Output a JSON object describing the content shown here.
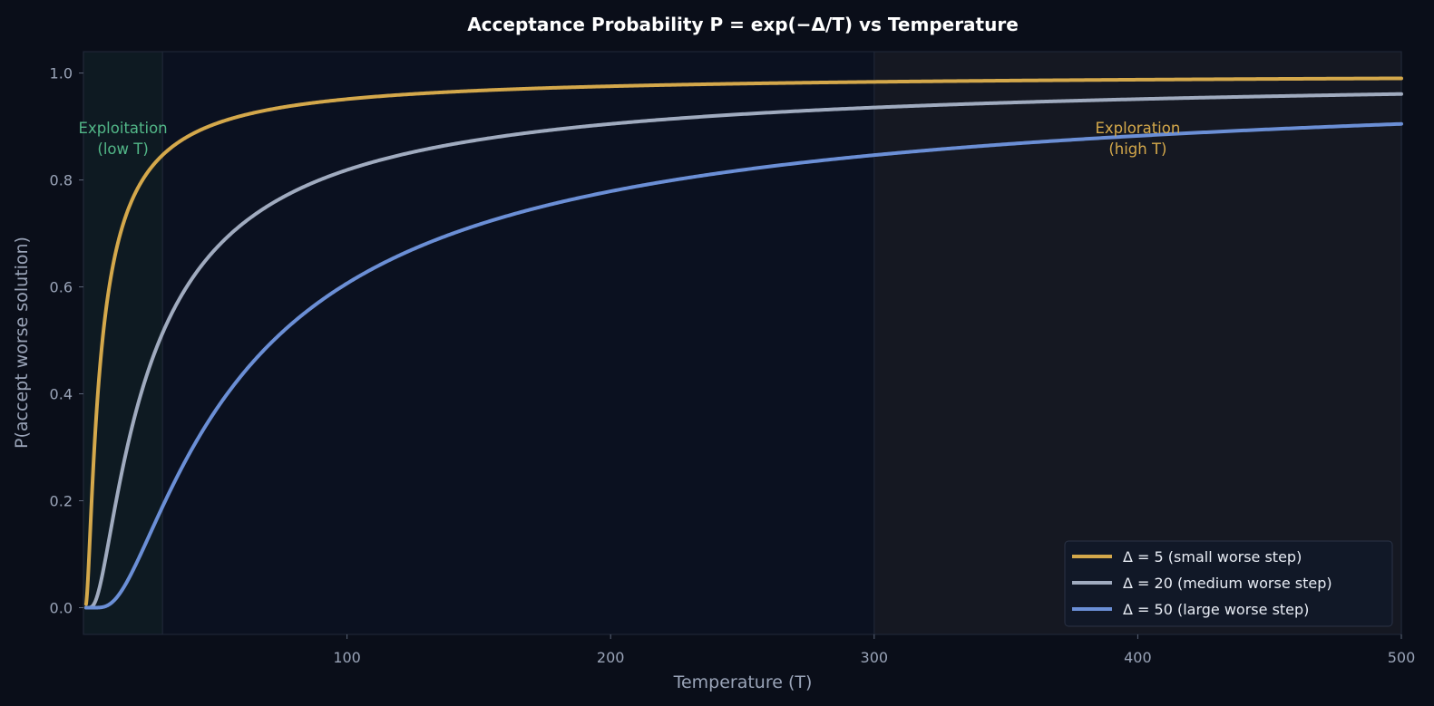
{
  "chart_data": {
    "type": "line",
    "title": "Acceptance Probability  P = exp(−Δ/T)  vs Temperature",
    "xlabel": "Temperature (T)",
    "ylabel": "P(accept worse solution)",
    "xlim": [
      0,
      500
    ],
    "ylim": [
      -0.05,
      1.04
    ],
    "xticks": [
      100,
      200,
      300,
      400,
      500
    ],
    "xtick_labels": [
      "100",
      "200",
      "300",
      "400",
      "500"
    ],
    "yticks": [
      0.0,
      0.2,
      0.4,
      0.6,
      0.8,
      1.0
    ],
    "ytick_labels": [
      "0.0",
      "0.2",
      "0.4",
      "0.6",
      "0.8",
      "1.0"
    ],
    "formula": "P = exp(-delta / T)",
    "series": [
      {
        "name": "Δ = 5  (small worse step)",
        "delta": 5,
        "color": "#d4a84b"
      },
      {
        "name": "Δ = 20 (medium worse step)",
        "delta": 20,
        "color": "#a0abbf"
      },
      {
        "name": "Δ = 50 (large worse step)",
        "delta": 50,
        "color": "#6b8fd6"
      }
    ],
    "regions": [
      {
        "label_lines": [
          "Exploitation",
          "(low T)"
        ],
        "x_range": [
          0,
          30
        ],
        "color": "#52b788",
        "fill": "#0e1a22"
      },
      {
        "label_lines": [
          "Exploration",
          "(high T)"
        ],
        "x_range": [
          300,
          500
        ],
        "color": "#d4a84b",
        "fill": "#151822"
      }
    ],
    "legend_position": "lower-right"
  }
}
